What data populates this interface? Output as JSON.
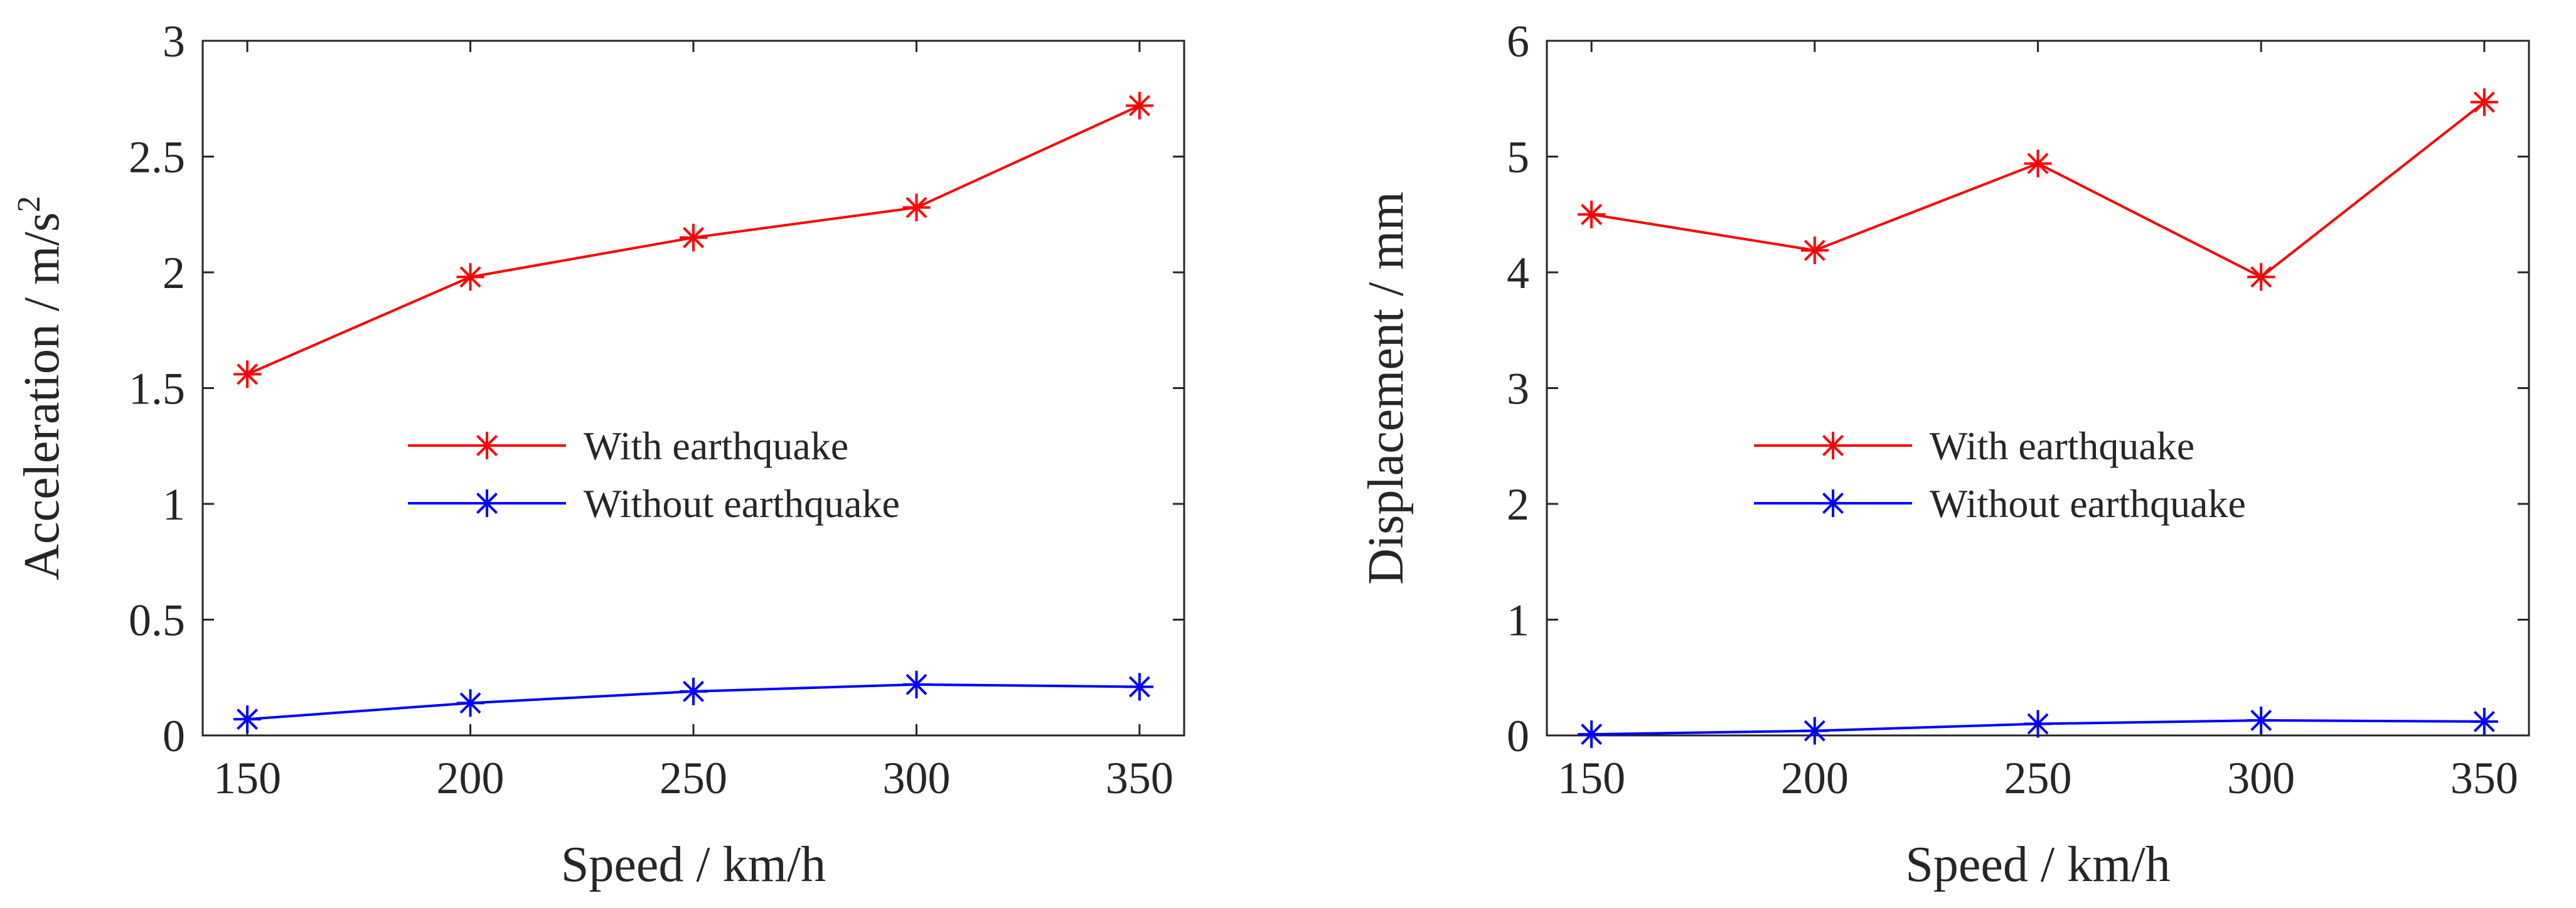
{
  "chart_data": [
    {
      "type": "line",
      "x": [
        150,
        200,
        250,
        300,
        350
      ],
      "xlabel": "Speed / km/h",
      "ylabel": "Acceleration / m/s",
      "ylabel_superscript": "2",
      "xlim": [
        140,
        360
      ],
      "ylim": [
        0,
        3
      ],
      "xticks": [
        "150",
        "200",
        "250",
        "300",
        "350"
      ],
      "yticks": [
        "0",
        "0.5",
        "1",
        "1.5",
        "2",
        "2.5",
        "3"
      ],
      "ytick_values": [
        0,
        0.5,
        1,
        1.5,
        2,
        2.5,
        3
      ],
      "grid": false,
      "legend_location": "center",
      "series": [
        {
          "name": "With earthquake",
          "color": "#ff0000",
          "marker": "asterisk",
          "values": [
            1.56,
            1.98,
            2.15,
            2.28,
            2.72
          ]
        },
        {
          "name": "Without earthquake",
          "color": "#0000ff",
          "marker": "asterisk",
          "values": [
            0.07,
            0.14,
            0.19,
            0.22,
            0.21
          ]
        }
      ]
    },
    {
      "type": "line",
      "x": [
        150,
        200,
        250,
        300,
        350
      ],
      "xlabel": "Speed / km/h",
      "ylabel": "Displacement / mm",
      "ylabel_superscript": "",
      "xlim": [
        140,
        360
      ],
      "ylim": [
        0,
        6
      ],
      "xticks": [
        "150",
        "200",
        "250",
        "300",
        "350"
      ],
      "yticks": [
        "0",
        "1",
        "2",
        "3",
        "4",
        "5",
        "6"
      ],
      "ytick_values": [
        0,
        1,
        2,
        3,
        4,
        5,
        6
      ],
      "grid": false,
      "legend_location": "center",
      "series": [
        {
          "name": "With earthquake",
          "color": "#ff0000",
          "marker": "asterisk",
          "values": [
            4.5,
            4.19,
            4.94,
            3.96,
            5.47
          ]
        },
        {
          "name": "Without earthquake",
          "color": "#0000ff",
          "marker": "asterisk",
          "values": [
            0.01,
            0.04,
            0.1,
            0.13,
            0.12
          ]
        }
      ]
    }
  ]
}
